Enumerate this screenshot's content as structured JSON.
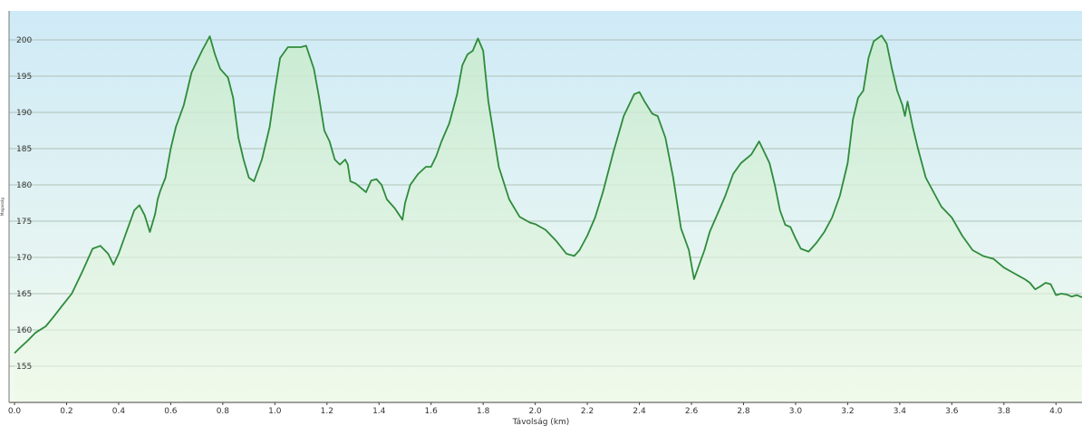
{
  "chart_data": {
    "type": "area",
    "title": "",
    "xlabel": "Távolság (km)",
    "ylabel": "Magasság",
    "xlim": [
      0,
      4.1
    ],
    "ylim": [
      150,
      204
    ],
    "grid": true,
    "legend": "none",
    "x_ticks": [
      "0.0",
      "0.2",
      "0.4",
      "0.6",
      "0.8",
      "1.0",
      "1.2",
      "1.4",
      "1.6",
      "1.8",
      "2.0",
      "2.2",
      "2.4",
      "2.6",
      "2.8",
      "3.0",
      "3.2",
      "3.4",
      "3.6",
      "3.8",
      "4.0"
    ],
    "y_ticks": [
      "155",
      "160",
      "165",
      "170",
      "175",
      "180",
      "185",
      "190",
      "195",
      "200"
    ],
    "colors": {
      "line": "#2e8b3a",
      "bg_top": "#cfeaf7",
      "bg_bottom": "#f3fbef"
    },
    "series": [
      {
        "x": [
          0.0,
          0.02,
          0.05,
          0.08,
          0.12,
          0.15,
          0.18,
          0.22,
          0.26,
          0.3,
          0.33,
          0.36,
          0.38,
          0.4,
          0.43,
          0.46,
          0.48,
          0.5,
          0.52,
          0.54,
          0.55,
          0.56,
          0.58,
          0.6,
          0.62,
          0.65,
          0.68,
          0.7,
          0.72,
          0.75,
          0.77,
          0.79,
          0.8,
          0.82,
          0.84,
          0.86,
          0.88,
          0.9,
          0.92,
          0.95,
          0.98,
          1.0,
          1.02,
          1.05,
          1.08,
          1.1,
          1.12,
          1.15,
          1.17,
          1.19,
          1.21,
          1.23,
          1.25,
          1.27,
          1.28,
          1.29,
          1.31,
          1.33,
          1.35,
          1.37,
          1.39,
          1.41,
          1.43,
          1.46,
          1.49,
          1.5,
          1.52,
          1.55,
          1.58,
          1.6,
          1.62,
          1.64,
          1.67,
          1.7,
          1.72,
          1.74,
          1.76,
          1.78,
          1.8,
          1.81,
          1.82,
          1.84,
          1.86,
          1.9,
          1.94,
          1.98,
          2.0,
          2.04,
          2.08,
          2.12,
          2.15,
          2.17,
          2.2,
          2.23,
          2.26,
          2.3,
          2.34,
          2.38,
          2.4,
          2.42,
          2.45,
          2.47,
          2.5,
          2.53,
          2.56,
          2.59,
          2.61,
          2.63,
          2.65,
          2.67,
          2.7,
          2.73,
          2.76,
          2.79,
          2.83,
          2.86,
          2.88,
          2.9,
          2.92,
          2.94,
          2.96,
          2.98,
          3.0,
          3.02,
          3.05,
          3.08,
          3.11,
          3.14,
          3.17,
          3.2,
          3.22,
          3.24,
          3.26,
          3.28,
          3.3,
          3.33,
          3.35,
          3.37,
          3.39,
          3.41,
          3.42,
          3.43,
          3.45,
          3.47,
          3.5,
          3.53,
          3.56,
          3.6,
          3.64,
          3.68,
          3.72,
          3.76,
          3.8,
          3.84,
          3.86,
          3.88,
          3.9,
          3.92,
          3.94,
          3.96,
          3.98,
          4.0,
          4.02,
          4.04,
          4.06,
          4.08,
          4.1
        ],
        "y": [
          156.8,
          157.5,
          158.5,
          159.6,
          160.5,
          161.8,
          163.2,
          165.0,
          168.0,
          171.2,
          171.6,
          170.5,
          169.0,
          170.5,
          173.5,
          176.5,
          177.2,
          175.8,
          173.5,
          176.0,
          178.0,
          179.2,
          181.0,
          185.0,
          188.0,
          191.0,
          195.5,
          197.0,
          198.5,
          200.5,
          198.0,
          196.0,
          195.6,
          194.8,
          192.0,
          186.5,
          183.5,
          181.0,
          180.5,
          183.5,
          188.0,
          193.0,
          197.5,
          199.0,
          199.0,
          199.0,
          199.2,
          196.0,
          192.0,
          187.5,
          186.0,
          183.5,
          182.8,
          183.5,
          182.8,
          180.5,
          180.2,
          179.6,
          179.0,
          180.6,
          180.8,
          180.0,
          178.0,
          176.8,
          175.2,
          177.5,
          180.0,
          181.5,
          182.5,
          182.5,
          184.0,
          186.0,
          188.5,
          192.5,
          196.5,
          198.0,
          198.5,
          200.2,
          198.5,
          195.0,
          191.5,
          187.0,
          182.5,
          178.0,
          175.6,
          174.8,
          174.6,
          173.8,
          172.3,
          170.5,
          170.2,
          171.0,
          173.0,
          175.5,
          179.0,
          184.5,
          189.5,
          192.5,
          192.8,
          191.5,
          189.8,
          189.5,
          186.5,
          181.0,
          174.0,
          171.0,
          167.0,
          169.0,
          171.0,
          173.5,
          176.0,
          178.5,
          181.5,
          183.0,
          184.2,
          186.0,
          184.5,
          183.0,
          180.0,
          176.5,
          174.5,
          174.2,
          172.6,
          171.2,
          170.8,
          172.0,
          173.5,
          175.5,
          178.5,
          183.0,
          189.0,
          192.0,
          193.0,
          197.5,
          199.8,
          200.6,
          199.5,
          196.0,
          193.0,
          191.0,
          189.5,
          191.5,
          188.0,
          185.0,
          181.0,
          179.0,
          177.0,
          175.5,
          173.0,
          171.0,
          170.2,
          169.8,
          168.6,
          167.8,
          167.4,
          167.0,
          166.5,
          165.6,
          166.0,
          166.5,
          166.3,
          164.8,
          165.0,
          164.9,
          164.6,
          164.8,
          164.5
        ]
      }
    ]
  }
}
